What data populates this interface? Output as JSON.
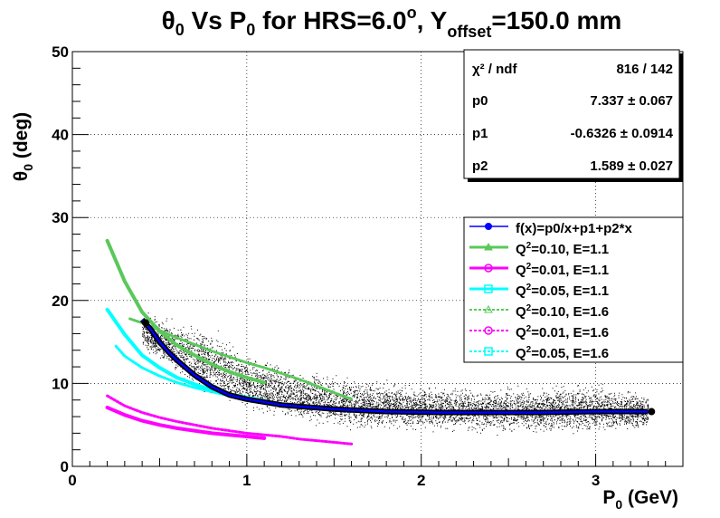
{
  "chart_data": {
    "type": "scatter",
    "title": {
      "theta": "θ",
      "theta_sub": "0",
      "mid": " Vs P",
      "p_sub": "0",
      "tail": " for HRS=6.0",
      "deg_sup": "o",
      "after_deg": ", Y",
      "offset_sub": "offset",
      "end": "=150.0 mm"
    },
    "xlabel": {
      "main": "P",
      "sub": "0",
      "unit": " (GeV)"
    },
    "ylabel": {
      "main": "θ",
      "sub": "0",
      "unit": " (deg)"
    },
    "xlim": [
      0,
      3.5
    ],
    "ylim": [
      0,
      50
    ],
    "x_ticks": [
      "0",
      "1",
      "2",
      "3"
    ],
    "y_ticks": [
      "0",
      "10",
      "20",
      "30",
      "40",
      "50"
    ],
    "grid": true,
    "stats_box": {
      "position": "top-right",
      "rows": [
        {
          "label": "χ² / ndf",
          "value": "816 / 142"
        },
        {
          "label": "p0",
          "value": "7.337 ± 0.067"
        },
        {
          "label": "p1",
          "value": "-0.6326 ± 0.0914"
        },
        {
          "label": "p2",
          "value": "1.589 ± 0.027"
        }
      ]
    },
    "fit": {
      "legend": "f(x)=p0/x+p1+p2*x",
      "color": "#0000ff",
      "formula_params": {
        "p0": 7.337,
        "p1": -0.6326,
        "p2": 1.589
      },
      "x_range": [
        0.33,
        3.32
      ],
      "profile_points": [
        {
          "x": 0.4,
          "y": 17.7
        },
        {
          "x": 0.45,
          "y": 16.5
        },
        {
          "x": 0.5,
          "y": 15.0
        },
        {
          "x": 0.55,
          "y": 13.8
        },
        {
          "x": 0.6,
          "y": 12.8
        },
        {
          "x": 0.7,
          "y": 11.0
        },
        {
          "x": 0.8,
          "y": 9.6
        },
        {
          "x": 0.9,
          "y": 8.6
        },
        {
          "x": 1.0,
          "y": 8.1
        },
        {
          "x": 1.2,
          "y": 7.4
        },
        {
          "x": 1.5,
          "y": 6.9
        },
        {
          "x": 1.8,
          "y": 6.6
        },
        {
          "x": 2.1,
          "y": 6.5
        },
        {
          "x": 2.4,
          "y": 6.5
        },
        {
          "x": 2.7,
          "y": 6.5
        },
        {
          "x": 3.0,
          "y": 6.6
        },
        {
          "x": 3.3,
          "y": 6.6
        }
      ]
    },
    "scatter_cloud": {
      "color": "#000000",
      "envelope": [
        {
          "x": 0.4,
          "lo": 14,
          "hi": 19
        },
        {
          "x": 0.6,
          "lo": 10,
          "hi": 18
        },
        {
          "x": 0.8,
          "lo": 7.5,
          "hi": 17
        },
        {
          "x": 1.0,
          "lo": 6,
          "hi": 14
        },
        {
          "x": 1.3,
          "lo": 5,
          "hi": 12
        },
        {
          "x": 1.6,
          "lo": 4,
          "hi": 11
        },
        {
          "x": 2.0,
          "lo": 4,
          "hi": 10
        },
        {
          "x": 2.5,
          "lo": 3.5,
          "hi": 10
        },
        {
          "x": 3.0,
          "lo": 3.5,
          "hi": 10.5
        },
        {
          "x": 3.3,
          "lo": 4,
          "hi": 9
        }
      ]
    },
    "series": [
      {
        "name": "Q²=0.10, E=1.1",
        "label_main": "Q",
        "label_sup": "2",
        "label_rest": "=0.10, E=1.1",
        "color": "#5ac85a",
        "dashed": false,
        "marker": "triangle",
        "points": [
          [
            0.2,
            27.2
          ],
          [
            0.3,
            22.3
          ],
          [
            0.4,
            18.6
          ],
          [
            0.5,
            16.3
          ],
          [
            0.6,
            14.6
          ],
          [
            0.7,
            13.4
          ],
          [
            0.8,
            12.3
          ],
          [
            0.9,
            11.4
          ],
          [
            1.0,
            10.7
          ],
          [
            1.1,
            10.1
          ]
        ]
      },
      {
        "name": "Q²=0.01, E=1.1",
        "label_main": "Q",
        "label_sup": "2",
        "label_rest": "=0.01, E=1.1",
        "color": "#ff00ff",
        "dashed": false,
        "marker": "circle",
        "points": [
          [
            0.2,
            7.1
          ],
          [
            0.3,
            6.2
          ],
          [
            0.4,
            5.5
          ],
          [
            0.5,
            5.0
          ],
          [
            0.6,
            4.6
          ],
          [
            0.7,
            4.3
          ],
          [
            0.8,
            4.0
          ],
          [
            0.9,
            3.8
          ],
          [
            1.0,
            3.6
          ],
          [
            1.1,
            3.4
          ]
        ]
      },
      {
        "name": "Q²=0.05, E=1.1",
        "label_main": "Q",
        "label_sup": "2",
        "label_rest": "=0.05, E=1.1",
        "color": "#00ffff",
        "dashed": false,
        "marker": "cross",
        "points": [
          [
            0.2,
            18.9
          ],
          [
            0.3,
            15.9
          ],
          [
            0.4,
            13.4
          ],
          [
            0.5,
            11.9
          ],
          [
            0.6,
            10.7
          ],
          [
            0.7,
            9.9
          ],
          [
            0.8,
            9.2
          ],
          [
            0.9,
            8.7
          ],
          [
            1.0,
            8.3
          ],
          [
            1.1,
            7.9
          ]
        ]
      },
      {
        "name": "Q²=0.10, E=1.6",
        "label_main": "Q",
        "label_sup": "2",
        "label_rest": "=0.10, E=1.6",
        "color": "#5ac85a",
        "dashed": true,
        "marker": "triangle",
        "points": [
          [
            0.33,
            17.8
          ],
          [
            0.4,
            17.3
          ],
          [
            0.5,
            16.4
          ],
          [
            0.6,
            15.5
          ],
          [
            0.7,
            14.7
          ],
          [
            0.8,
            13.9
          ],
          [
            0.9,
            13.2
          ],
          [
            1.0,
            12.5
          ],
          [
            1.1,
            11.9
          ],
          [
            1.2,
            11.2
          ],
          [
            1.3,
            10.5
          ],
          [
            1.4,
            9.7
          ],
          [
            1.5,
            8.9
          ],
          [
            1.6,
            8.1
          ]
        ]
      },
      {
        "name": "Q²=0.01, E=1.6",
        "label_main": "Q",
        "label_sup": "2",
        "label_rest": "=0.01, E=1.6",
        "color": "#ff00ff",
        "dashed": true,
        "marker": "circle",
        "points": [
          [
            0.2,
            8.5
          ],
          [
            0.3,
            7.3
          ],
          [
            0.4,
            6.5
          ],
          [
            0.5,
            5.9
          ],
          [
            0.6,
            5.4
          ],
          [
            0.7,
            5.0
          ],
          [
            0.8,
            4.6
          ],
          [
            0.9,
            4.3
          ],
          [
            1.0,
            4.0
          ],
          [
            1.1,
            3.8
          ],
          [
            1.2,
            3.6
          ],
          [
            1.3,
            3.3
          ],
          [
            1.4,
            3.1
          ],
          [
            1.5,
            2.9
          ],
          [
            1.6,
            2.7
          ]
        ]
      },
      {
        "name": "Q²=0.05, E=1.6",
        "label_main": "Q",
        "label_sup": "2",
        "label_rest": "=0.05, E=1.6",
        "color": "#00ffff",
        "dashed": true,
        "marker": "cross",
        "points": [
          [
            0.25,
            14.5
          ],
          [
            0.3,
            13.3
          ],
          [
            0.4,
            11.9
          ],
          [
            0.5,
            10.9
          ],
          [
            0.6,
            10.1
          ],
          [
            0.7,
            9.5
          ],
          [
            0.8,
            9.0
          ],
          [
            0.9,
            8.5
          ],
          [
            1.0,
            8.1
          ],
          [
            1.1,
            7.8
          ],
          [
            1.2,
            7.5
          ],
          [
            1.3,
            7.2
          ],
          [
            1.4,
            7.0
          ],
          [
            1.5,
            6.8
          ],
          [
            1.6,
            6.6
          ]
        ]
      }
    ],
    "fit_marker_points": [
      [
        0.42,
        17.3
      ],
      [
        3.32,
        6.6
      ]
    ],
    "legend_position": "right-middle"
  }
}
